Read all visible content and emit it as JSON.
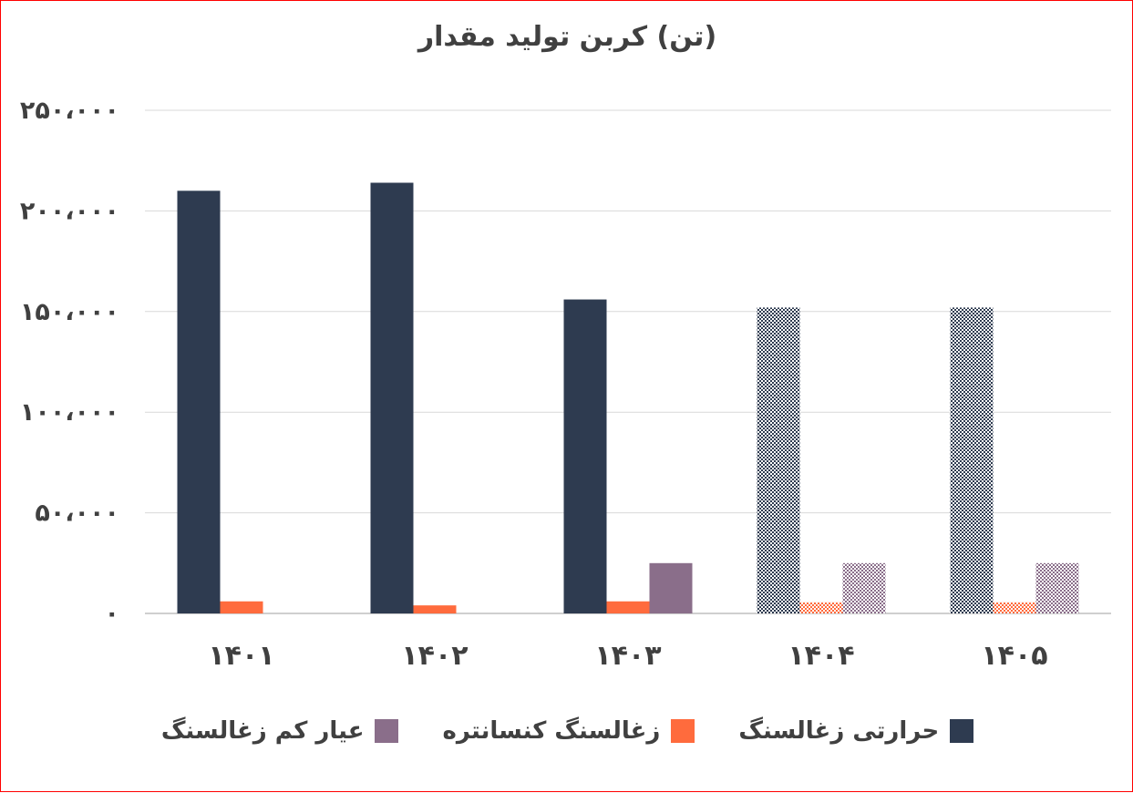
{
  "chart_data": {
    "type": "bar",
    "title": "(تن) کربن تولید مقدار",
    "categories": [
      "۱۴۰۱",
      "۱۴۰۲",
      "۱۴۰۳",
      "۱۴۰۴",
      "۱۴۰۵"
    ],
    "ylim": [
      0,
      250000
    ],
    "yticks": [
      0,
      50000,
      100000,
      150000,
      200000,
      250000
    ],
    "ytick_labels": [
      "۰",
      "۵۰،۰۰۰",
      "۱۰۰،۰۰۰",
      "۱۵۰،۰۰۰",
      "۲۰۰،۰۰۰",
      "۲۵۰،۰۰۰"
    ],
    "grid": true,
    "legend_position": "bottom",
    "patterned_categories": [
      "۱۴۰۴",
      "۱۴۰۵"
    ],
    "series": [
      {
        "name": "حرارتی زغالسنگ",
        "color": "#2e3b50",
        "values": [
          210000,
          214000,
          156000,
          152000,
          152000
        ]
      },
      {
        "name": "زغالسنگ کنسانتره",
        "color": "#ff6b3d",
        "values": [
          6000,
          4000,
          6000,
          5500,
          5500
        ]
      },
      {
        "name": "عیار کم زغالسنگ",
        "color": "#8a6e8a",
        "values": [
          0,
          0,
          25000,
          25000,
          25000
        ]
      }
    ]
  }
}
